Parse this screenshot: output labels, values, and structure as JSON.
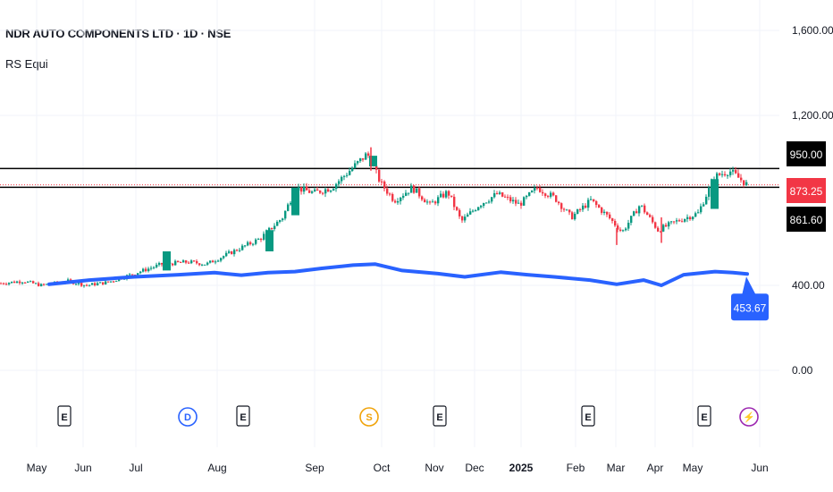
{
  "header": {
    "title": "NDR AUTO COMPONENTS LTD · 1D · NSE",
    "indicator": "RS Equi"
  },
  "colors": {
    "up": "#089981",
    "down": "#f23645",
    "rs_line": "#2962ff",
    "grid": "#f0f3fa",
    "level_line": "#000000"
  },
  "chart_data": {
    "type": "candlestick",
    "price_axis": {
      "ticks": [
        "1,600.00",
        "1,200.00",
        "400.00",
        "0.00"
      ],
      "tick_values": [
        1600,
        1200,
        400,
        0
      ]
    },
    "ylim": [
      -100,
      1700
    ],
    "time_axis": {
      "labels": [
        "May",
        "Jun",
        "Jul",
        "Aug",
        "Sep",
        "Oct",
        "Nov",
        "Dec",
        "2025",
        "Feb",
        "Mar",
        "Apr",
        "May",
        "Jun"
      ],
      "bold_label": "2025"
    },
    "horizontal_levels": [
      {
        "value": 950,
        "label": "950.00",
        "style": "solid"
      },
      {
        "value": 861.6,
        "label": "861.60",
        "style": "solid"
      }
    ],
    "last_price": {
      "value": 873.25,
      "label": "873.25"
    },
    "price_trend": [
      {
        "t": 0,
        "v": 410
      },
      {
        "t": 25,
        "v": 420
      },
      {
        "t": 45,
        "v": 400
      },
      {
        "t": 75,
        "v": 420
      },
      {
        "t": 95,
        "v": 400
      },
      {
        "t": 120,
        "v": 415
      },
      {
        "t": 145,
        "v": 450
      },
      {
        "t": 180,
        "v": 500
      },
      {
        "t": 210,
        "v": 510
      },
      {
        "t": 230,
        "v": 500
      },
      {
        "t": 260,
        "v": 560
      },
      {
        "t": 290,
        "v": 620
      },
      {
        "t": 315,
        "v": 720
      },
      {
        "t": 330,
        "v": 860
      },
      {
        "t": 350,
        "v": 835
      },
      {
        "t": 370,
        "v": 860
      },
      {
        "t": 390,
        "v": 940
      },
      {
        "t": 410,
        "v": 1020
      },
      {
        "t": 425,
        "v": 880
      },
      {
        "t": 440,
        "v": 800
      },
      {
        "t": 460,
        "v": 860
      },
      {
        "t": 480,
        "v": 780
      },
      {
        "t": 500,
        "v": 840
      },
      {
        "t": 515,
        "v": 700
      },
      {
        "t": 535,
        "v": 780
      },
      {
        "t": 555,
        "v": 830
      },
      {
        "t": 580,
        "v": 780
      },
      {
        "t": 600,
        "v": 860
      },
      {
        "t": 620,
        "v": 810
      },
      {
        "t": 638,
        "v": 720
      },
      {
        "t": 660,
        "v": 800
      },
      {
        "t": 680,
        "v": 720
      },
      {
        "t": 695,
        "v": 650
      },
      {
        "t": 715,
        "v": 780
      },
      {
        "t": 735,
        "v": 660
      },
      {
        "t": 755,
        "v": 700
      },
      {
        "t": 780,
        "v": 740
      },
      {
        "t": 798,
        "v": 910
      },
      {
        "t": 815,
        "v": 940
      },
      {
        "t": 835,
        "v": 873
      }
    ],
    "spikes": [
      {
        "t": 415,
        "high": 1050,
        "low": 940
      },
      {
        "t": 740,
        "low": 600,
        "high": 720
      },
      {
        "t": 690,
        "low": 590,
        "high": 670
      }
    ],
    "series": [
      {
        "name": "RS Equi",
        "points": [
          {
            "t": 55,
            "v": 405
          },
          {
            "t": 100,
            "v": 425
          },
          {
            "t": 150,
            "v": 440
          },
          {
            "t": 200,
            "v": 450
          },
          {
            "t": 240,
            "v": 460
          },
          {
            "t": 270,
            "v": 448
          },
          {
            "t": 300,
            "v": 460
          },
          {
            "t": 330,
            "v": 465
          },
          {
            "t": 360,
            "v": 480
          },
          {
            "t": 395,
            "v": 495
          },
          {
            "t": 420,
            "v": 500
          },
          {
            "t": 450,
            "v": 470
          },
          {
            "t": 490,
            "v": 455
          },
          {
            "t": 520,
            "v": 440
          },
          {
            "t": 560,
            "v": 462
          },
          {
            "t": 590,
            "v": 450
          },
          {
            "t": 620,
            "v": 440
          },
          {
            "t": 660,
            "v": 425
          },
          {
            "t": 690,
            "v": 405
          },
          {
            "t": 720,
            "v": 425
          },
          {
            "t": 740,
            "v": 400
          },
          {
            "t": 765,
            "v": 450
          },
          {
            "t": 800,
            "v": 465
          },
          {
            "t": 820,
            "v": 460
          },
          {
            "t": 836,
            "v": 453.67
          }
        ],
        "last_label": "453.67"
      }
    ],
    "event_markers": [
      {
        "letter": "E",
        "kind": "earnings"
      },
      {
        "letter": "D",
        "kind": "dividend"
      },
      {
        "letter": "E",
        "kind": "earnings"
      },
      {
        "letter": "S",
        "kind": "split"
      },
      {
        "letter": "E",
        "kind": "earnings"
      },
      {
        "letter": "E",
        "kind": "earnings"
      },
      {
        "letter": "E",
        "kind": "earnings"
      },
      {
        "letter": "⚡",
        "kind": "news"
      }
    ]
  }
}
